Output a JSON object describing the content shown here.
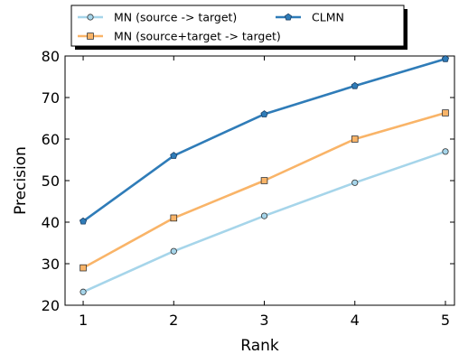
{
  "chart_data": {
    "type": "line",
    "title": "",
    "xlabel": "Rank",
    "ylabel": "Precision",
    "x": [
      1,
      2,
      3,
      4,
      5
    ],
    "xlim": [
      0.8,
      5.1
    ],
    "ylim": [
      20,
      80
    ],
    "xticks": [
      "1",
      "2",
      "3",
      "4",
      "5"
    ],
    "yticks": [
      "20",
      "30",
      "40",
      "50",
      "60",
      "70",
      "80"
    ],
    "grid": false,
    "legend_placement": "top (above plot, two columns)",
    "series": [
      {
        "name": "MN (source -> target)",
        "values": [
          23.2,
          33.0,
          41.5,
          49.5,
          57.0
        ],
        "color": "#a6d5ea",
        "marker": "circle"
      },
      {
        "name": "MN (source+target -> target)",
        "values": [
          29.0,
          41.0,
          50.0,
          60.0,
          66.3
        ],
        "color": "#f9b468",
        "marker": "square"
      },
      {
        "name": "CLMN",
        "values": [
          40.2,
          56.0,
          66.0,
          72.8,
          79.3
        ],
        "color": "#2f7cb8",
        "marker": "pentagon"
      }
    ]
  }
}
